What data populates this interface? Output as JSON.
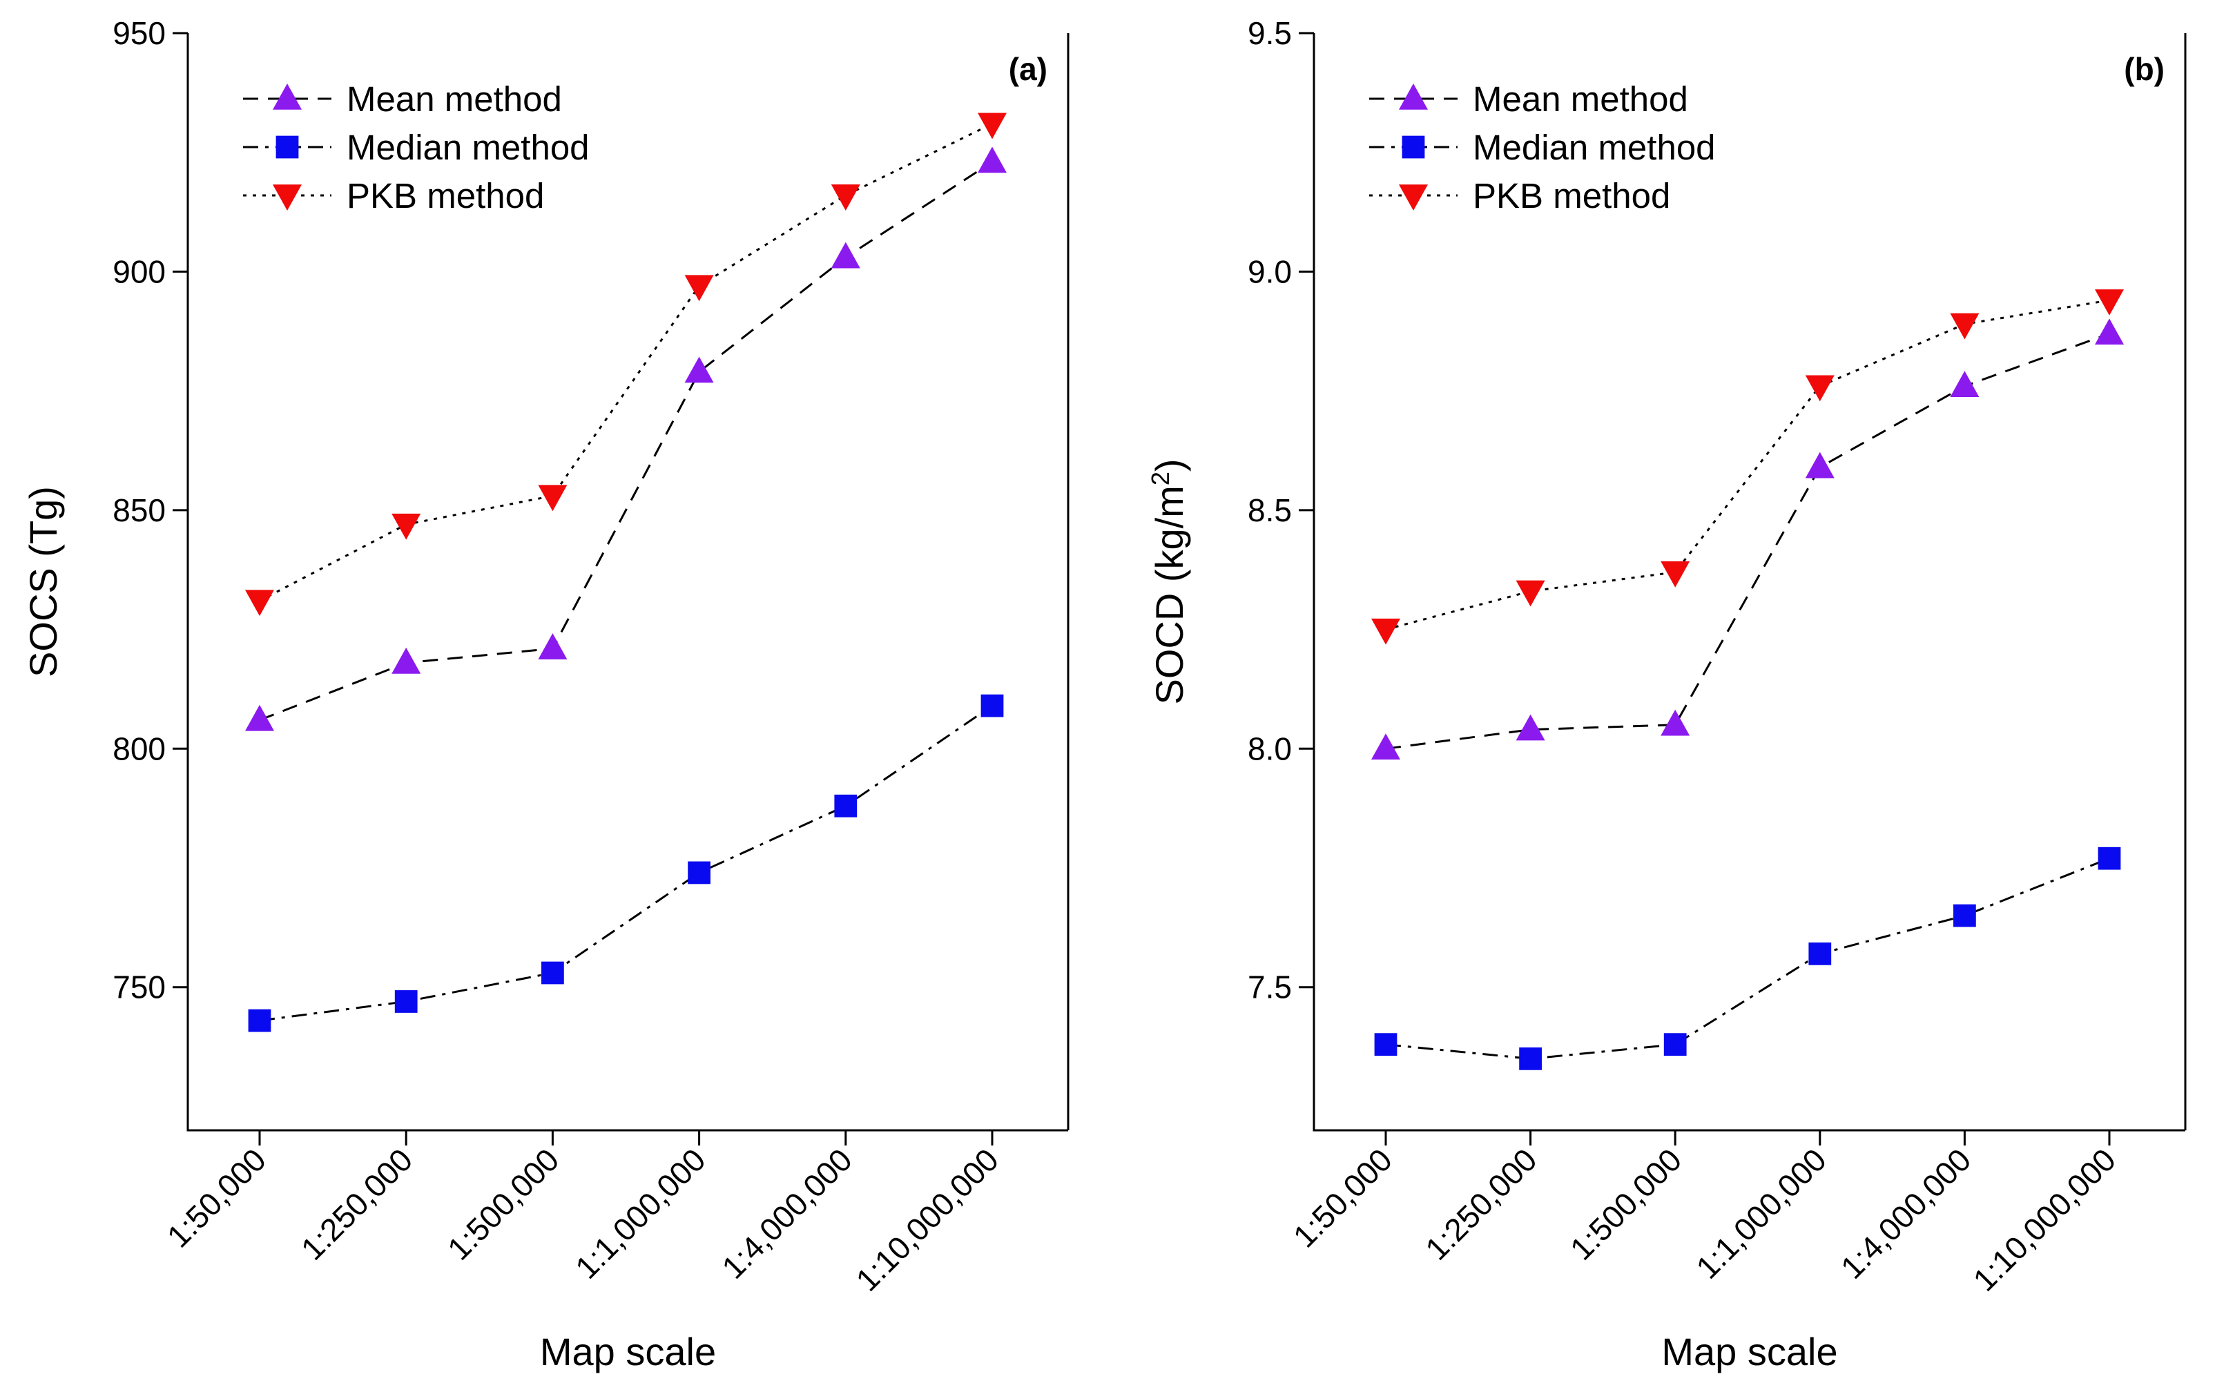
{
  "chart_data": [
    {
      "type": "line",
      "panel_label": "(a)",
      "xlabel": "Map scale",
      "ylabel": "SOCS (Tg)",
      "categories": [
        "1:50,000",
        "1:250,000",
        "1:500,000",
        "1:1,000,000",
        "1:4,000,000",
        "1:10,000,000"
      ],
      "ylim": [
        720,
        950
      ],
      "yticks": [
        750,
        800,
        850,
        900,
        950
      ],
      "ytick_labels": [
        "750",
        "800",
        "850",
        "900",
        "950"
      ],
      "legend_position": "top-left",
      "series": [
        {
          "name": "Mean method",
          "marker": "triangle-up",
          "dash": "dashed",
          "color": "#8B1AEF",
          "values": [
            806,
            818,
            821,
            879,
            903,
            923
          ]
        },
        {
          "name": "Median method",
          "marker": "square",
          "dash": "dash-dot",
          "color": "#0A0AF0",
          "values": [
            743,
            747,
            753,
            774,
            788,
            809
          ]
        },
        {
          "name": "PKB method",
          "marker": "triangle-down",
          "dash": "dotted",
          "color": "#F00A0A",
          "values": [
            831,
            847,
            853,
            897,
            916,
            931
          ]
        }
      ]
    },
    {
      "type": "line",
      "panel_label": "(b)",
      "xlabel": "Map scale",
      "ylabel": "SOCD (kg/m",
      "ylabel_superscript": "2",
      "ylabel_suffix": ")",
      "categories": [
        "1:50,000",
        "1:250,000",
        "1:500,000",
        "1:1,000,000",
        "1:4,000,000",
        "1:10,000,000"
      ],
      "ylim": [
        7.2,
        9.5
      ],
      "yticks": [
        7.5,
        8.0,
        8.5,
        9.0,
        9.5
      ],
      "ytick_labels": [
        "7.5",
        "8.0",
        "8.5",
        "9.0",
        "9.5"
      ],
      "legend_position": "top-left",
      "series": [
        {
          "name": "Mean method",
          "marker": "triangle-up",
          "dash": "dashed",
          "color": "#8B1AEF",
          "values": [
            8.0,
            8.04,
            8.05,
            8.59,
            8.76,
            8.87
          ]
        },
        {
          "name": "Median method",
          "marker": "square",
          "dash": "dash-dot",
          "color": "#0A0AF0",
          "values": [
            7.38,
            7.35,
            7.38,
            7.57,
            7.65,
            7.77
          ]
        },
        {
          "name": "PKB method",
          "marker": "triangle-down",
          "dash": "dotted",
          "color": "#F00A0A",
          "values": [
            8.25,
            8.33,
            8.37,
            8.76,
            8.89,
            8.94
          ]
        }
      ]
    }
  ]
}
